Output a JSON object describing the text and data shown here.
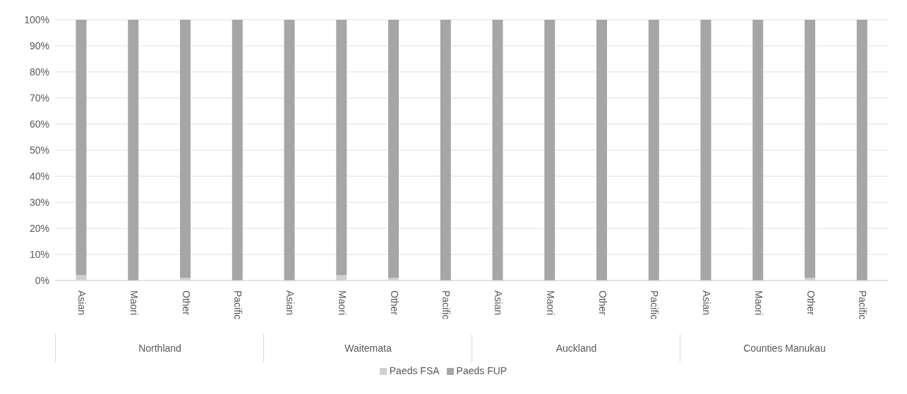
{
  "chart_data": {
    "type": "bar",
    "stacked": true,
    "categories": [
      "Asian",
      "Maori",
      "Other",
      "Pacific",
      "Asian",
      "Maori",
      "Other",
      "Pacific",
      "Asian",
      "Maori",
      "Other",
      "Pacific",
      "Asian",
      "Maori",
      "Other",
      "Pacific"
    ],
    "annotations": [
      "Northland",
      "Waitemata",
      "Auckland",
      "Counties Manukau"
    ],
    "series": [
      {
        "name": "Paeds FSA",
        "color": "#d0d0d0",
        "values": [
          2,
          0,
          1,
          0,
          0,
          2,
          1,
          0,
          0,
          0,
          0,
          0,
          0,
          0,
          1,
          0
        ]
      },
      {
        "name": "Paeds FUP",
        "color": "#a6a6a6",
        "values": [
          98,
          100,
          99,
          100,
          100,
          98,
          99,
          100,
          100,
          100,
          100,
          100,
          100,
          100,
          99,
          100
        ]
      }
    ],
    "ylim": [
      0,
      100
    ],
    "yticks": [
      {
        "value": 0,
        "label": "0%"
      },
      {
        "value": 10,
        "label": "10%"
      },
      {
        "value": 20,
        "label": "20%"
      },
      {
        "value": 30,
        "label": "30%"
      },
      {
        "value": 40,
        "label": "40%"
      },
      {
        "value": 50,
        "label": "50%"
      },
      {
        "value": 60,
        "label": "60%"
      },
      {
        "value": 70,
        "label": "70%"
      },
      {
        "value": 80,
        "label": "80%"
      },
      {
        "value": 90,
        "label": "90%"
      },
      {
        "value": 100,
        "label": "100%"
      }
    ],
    "grid": "y",
    "legend": "bottom"
  }
}
